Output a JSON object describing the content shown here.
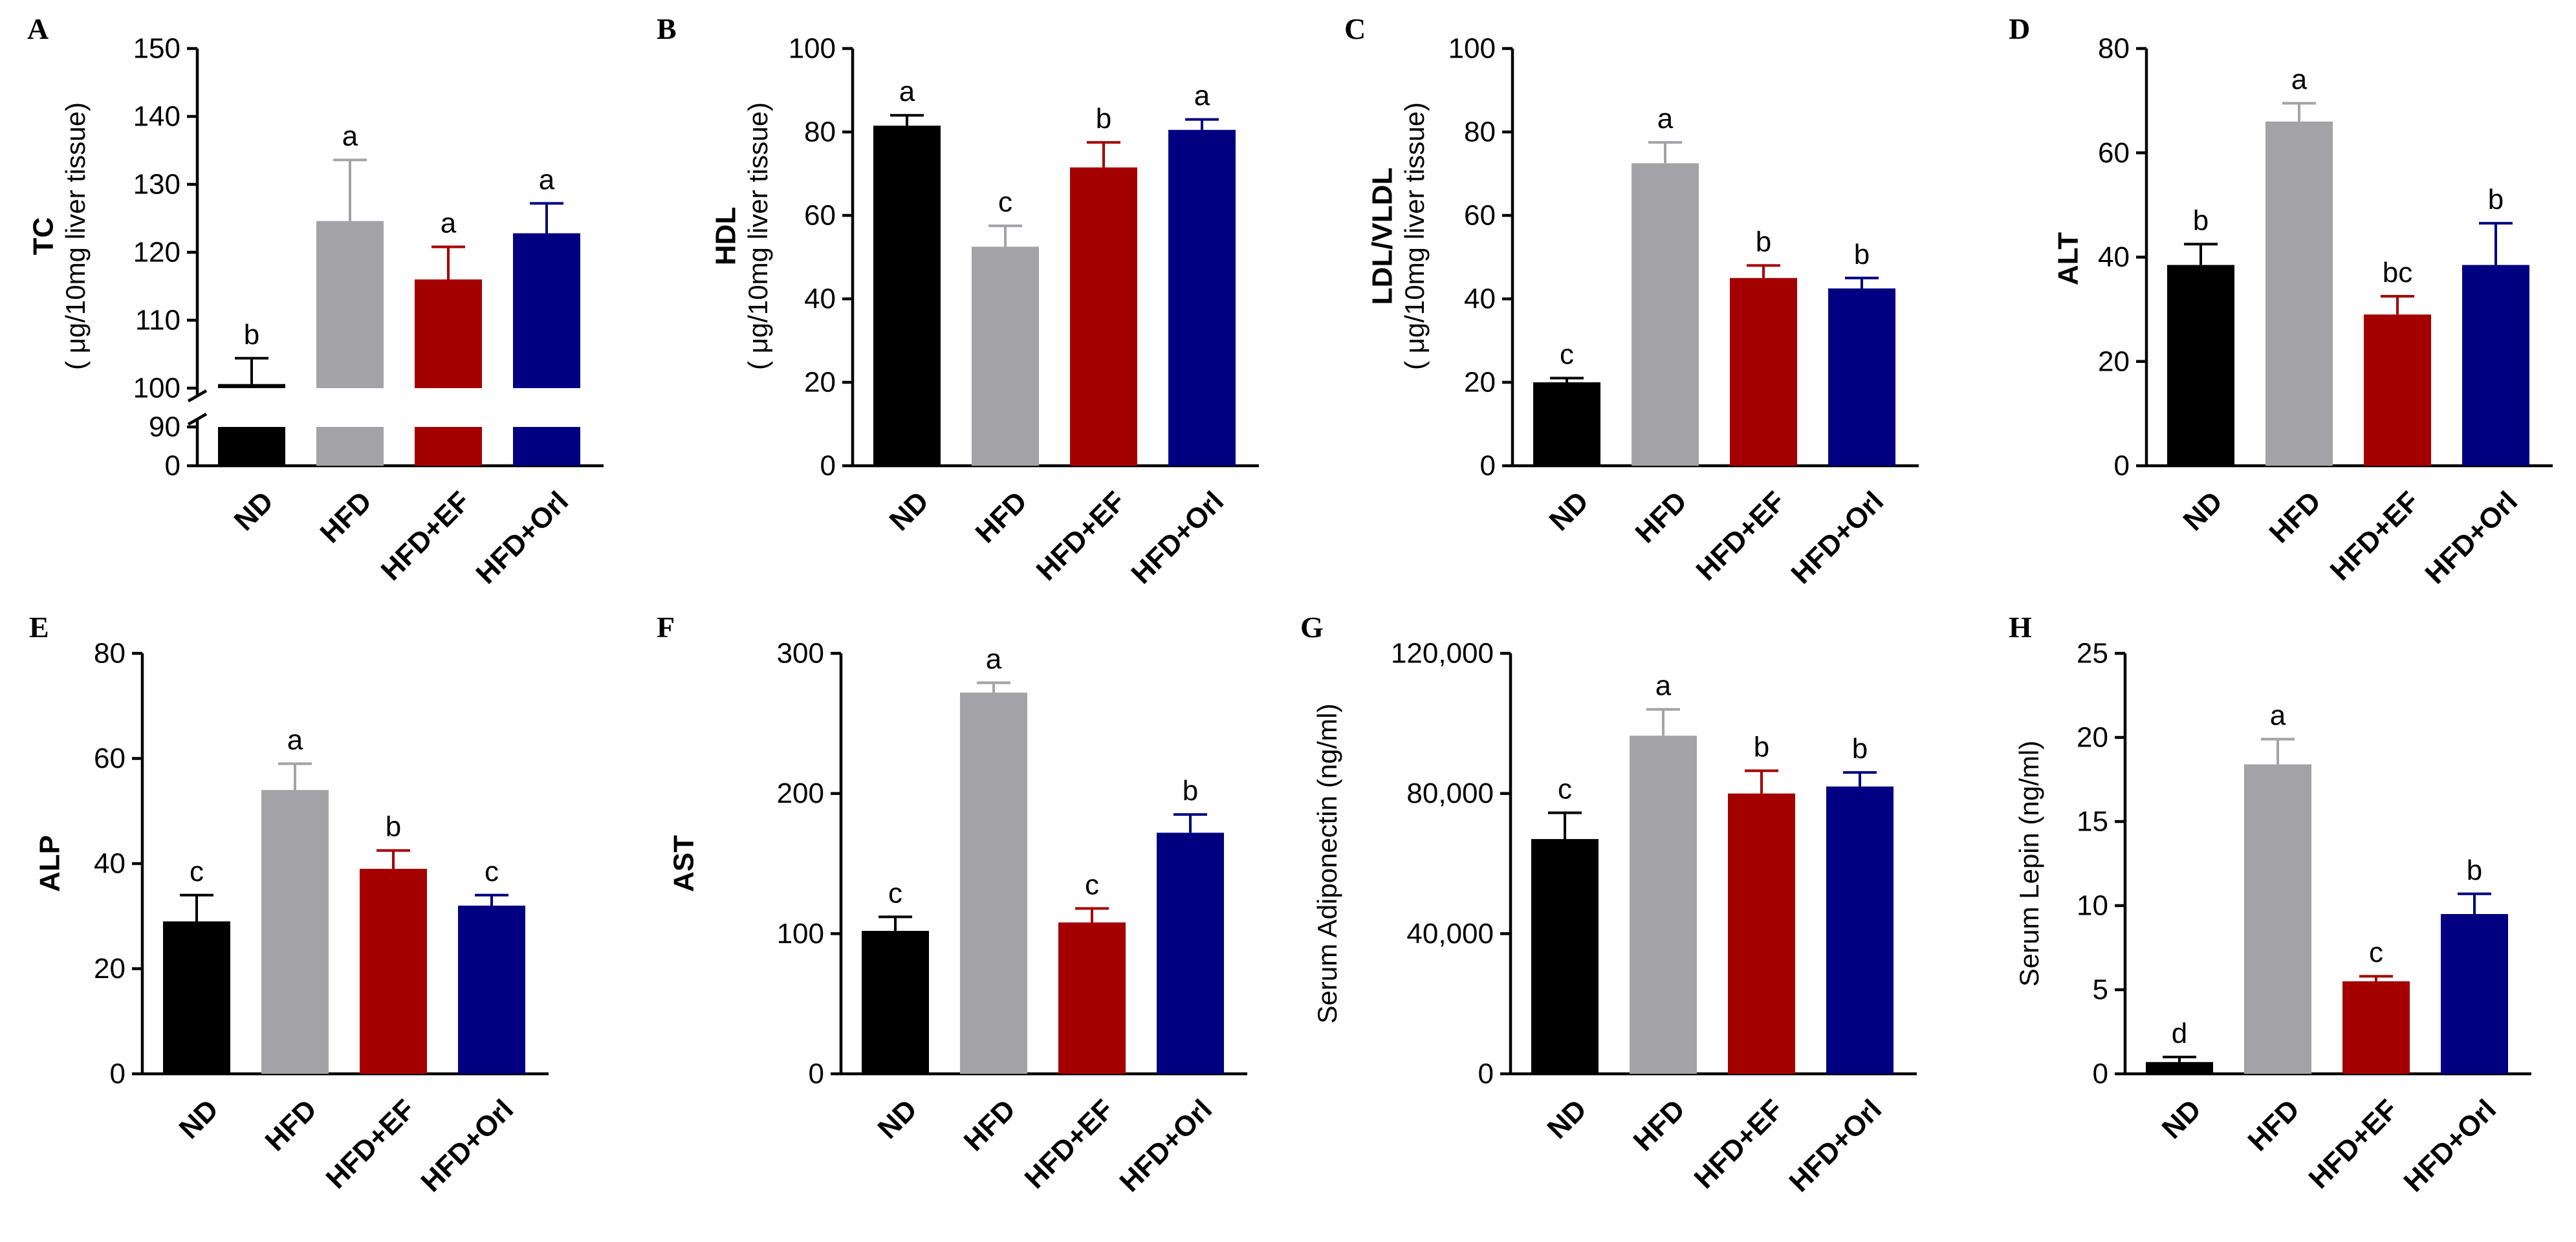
{
  "colors": {
    "ND": "#000000",
    "HFD": "#a3a3a7",
    "HFD+EF": "#a40000",
    "HFD+Orl": "#000080"
  },
  "chart_data": [
    {
      "panel": "A",
      "type": "bar",
      "ylabel": "TC",
      "ylabel2": "( μg/10mg liver tissue)",
      "y_break": {
        "lower": [
          0,
          90
        ],
        "upper": [
          100,
          150
        ]
      },
      "yticks": [
        "0",
        "90",
        "100",
        "110",
        "120",
        "130",
        "140",
        "150"
      ],
      "categories": [
        "ND",
        "HFD",
        "HFD+EF",
        "HFD+Orl"
      ],
      "values": [
        100.6,
        124.6,
        116.0,
        122.8
      ],
      "errors": [
        3.8,
        9.0,
        4.8,
        4.4
      ],
      "letters": [
        "b",
        "a",
        "a",
        "a"
      ]
    },
    {
      "panel": "B",
      "type": "bar",
      "ylabel": "HDL",
      "ylabel2": "( μg/10mg liver tissue)",
      "ylim": [
        0,
        100
      ],
      "yticks": [
        "0",
        "20",
        "40",
        "60",
        "80",
        "100"
      ],
      "categories": [
        "ND",
        "HFD",
        "HFD+EF",
        "HFD+Orl"
      ],
      "values": [
        81.5,
        52.5,
        71.5,
        80.5
      ],
      "errors": [
        2.5,
        5.0,
        6.0,
        2.5
      ],
      "letters": [
        "a",
        "c",
        "b",
        "a"
      ]
    },
    {
      "panel": "C",
      "type": "bar",
      "ylabel": "LDL/VLDL",
      "ylabel2": "( μg/10mg liver tissue)",
      "ylim": [
        0,
        100
      ],
      "yticks": [
        "0",
        "20",
        "40",
        "60",
        "80",
        "100"
      ],
      "categories": [
        "ND",
        "HFD",
        "HFD+EF",
        "HFD+Orl"
      ],
      "values": [
        20.0,
        72.5,
        45.0,
        42.5
      ],
      "errors": [
        1.0,
        5.0,
        3.0,
        2.5
      ],
      "letters": [
        "c",
        "a",
        "b",
        "b"
      ]
    },
    {
      "panel": "D",
      "type": "bar",
      "ylabel": "ALT",
      "ylim": [
        0,
        80
      ],
      "yticks": [
        "0",
        "20",
        "40",
        "60",
        "80"
      ],
      "categories": [
        "ND",
        "HFD",
        "HFD+EF",
        "HFD+Orl"
      ],
      "values": [
        38.5,
        66.0,
        29.0,
        38.5
      ],
      "errors": [
        4.0,
        3.5,
        3.5,
        8.0
      ],
      "letters": [
        "b",
        "a",
        "bc",
        "b"
      ]
    },
    {
      "panel": "E",
      "type": "bar",
      "ylabel": "ALP",
      "ylim": [
        0,
        80
      ],
      "yticks": [
        "0",
        "20",
        "40",
        "60",
        "80"
      ],
      "categories": [
        "ND",
        "HFD",
        "HFD+EF",
        "HFD+Orl"
      ],
      "values": [
        29.0,
        54.0,
        39.0,
        32.0
      ],
      "errors": [
        5.0,
        5.0,
        3.5,
        2.0
      ],
      "letters": [
        "c",
        "a",
        "b",
        "c"
      ]
    },
    {
      "panel": "F",
      "type": "bar",
      "ylabel": "AST",
      "ylim": [
        0,
        300
      ],
      "yticks": [
        "0",
        "100",
        "200",
        "300"
      ],
      "categories": [
        "ND",
        "HFD",
        "HFD+EF",
        "HFD+Orl"
      ],
      "values": [
        102.0,
        272.0,
        108.0,
        172.0
      ],
      "errors": [
        10.0,
        7.0,
        10.0,
        13.0
      ],
      "letters": [
        "c",
        "a",
        "c",
        "b"
      ]
    },
    {
      "panel": "G",
      "type": "bar",
      "ylabel": "Serum Adiponectin (ng/ml)",
      "ylim": [
        0,
        120000
      ],
      "yticks": [
        "0",
        "40,000",
        "80,000",
        "120,000"
      ],
      "categories": [
        "ND",
        "HFD",
        "HFD+EF",
        "HFD+Orl"
      ],
      "values": [
        67000,
        96500,
        80000,
        82000
      ],
      "errors": [
        7500,
        7500,
        6500,
        4000
      ],
      "letters": [
        "c",
        "a",
        "b",
        "b"
      ]
    },
    {
      "panel": "H",
      "type": "bar",
      "ylabel": "Serum Lepin (ng/ml)",
      "ylim": [
        0,
        25
      ],
      "yticks": [
        "0",
        "5",
        "10",
        "15",
        "20",
        "25"
      ],
      "categories": [
        "ND",
        "HFD",
        "HFD+EF",
        "HFD+Orl"
      ],
      "values": [
        0.7,
        18.4,
        5.5,
        9.5
      ],
      "errors": [
        0.3,
        1.5,
        0.3,
        1.2
      ],
      "letters": [
        "d",
        "a",
        "c",
        "b"
      ]
    }
  ]
}
